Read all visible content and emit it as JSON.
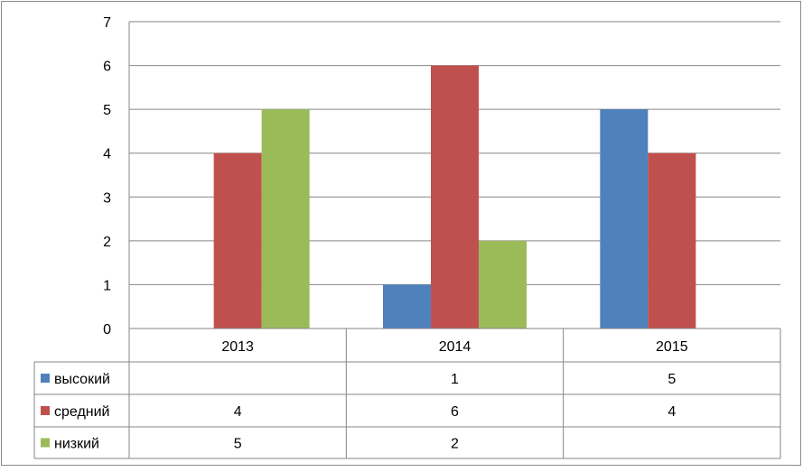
{
  "chart_data": {
    "type": "bar",
    "categories": [
      "2013",
      "2014",
      "2015"
    ],
    "series": [
      {
        "name": "высокий",
        "values": [
          null,
          1,
          5
        ],
        "color": "#4F81BD"
      },
      {
        "name": "средний",
        "values": [
          4,
          6,
          4
        ],
        "color": "#C0504D"
      },
      {
        "name": "низкий",
        "values": [
          5,
          2,
          null
        ],
        "color": "#9BBB59"
      }
    ],
    "yticks": [
      "0",
      "1",
      "2",
      "3",
      "4",
      "5",
      "6",
      "7"
    ],
    "ylim": [
      0,
      7
    ],
    "grid": true,
    "legend": "data-table",
    "table": {
      "rows": [
        {
          "label": "высокий",
          "cells": [
            "",
            "1",
            "5"
          ]
        },
        {
          "label": "средний",
          "cells": [
            "4",
            "6",
            "4"
          ]
        },
        {
          "label": "низкий",
          "cells": [
            "5",
            "2",
            ""
          ]
        }
      ]
    }
  }
}
